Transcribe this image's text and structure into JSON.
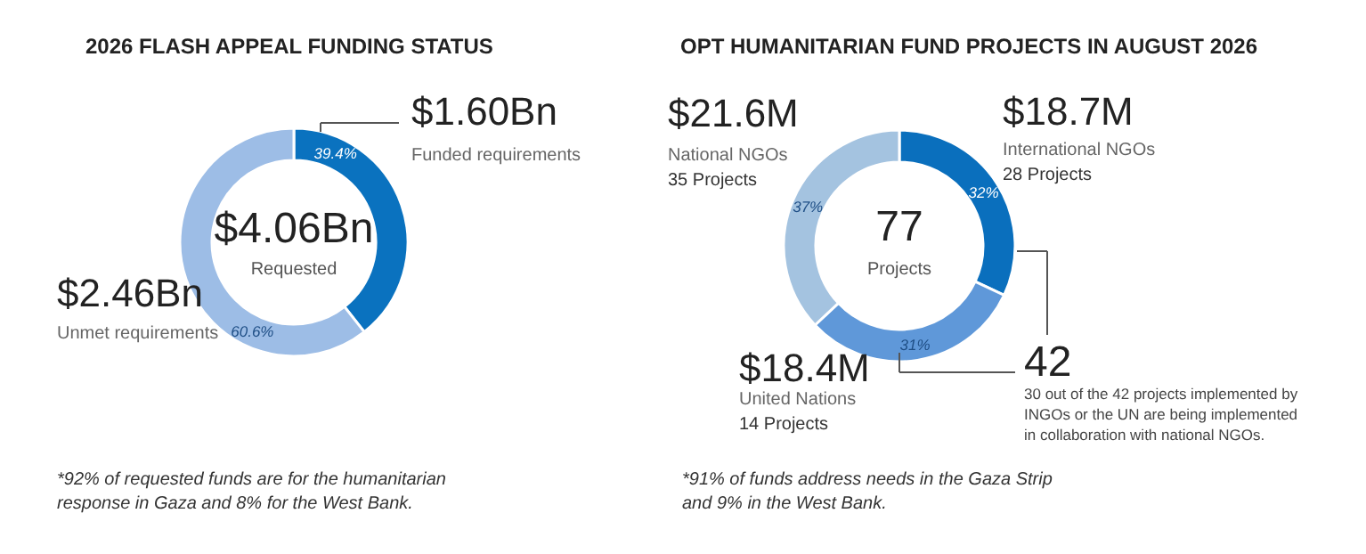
{
  "chart_data": [
    {
      "type": "donut",
      "title": "2026 FLASH APPEAL FUNDING STATUS",
      "categories": [
        "Funded requirements",
        "Unmet requirements"
      ],
      "values": [
        39.4,
        60.6
      ],
      "value_labels": [
        "39.4%",
        "60.6%"
      ],
      "colors": [
        "#0a72bf",
        "#9dbde6"
      ],
      "annotations": [
        "$1.60Bn",
        "$2.46Bn",
        "$4.06Bn",
        "Requested",
        "*92% of requested funds are for the humanitarian\nresponse in Gaza and 8% for the West Bank."
      ]
    },
    {
      "type": "donut",
      "title": "OPT HUMANITARIAN FUND PROJECTS IN AUGUST 2026",
      "categories": [
        "International NGOs",
        "United Nations",
        "National NGOs"
      ],
      "values": [
        32,
        31,
        37
      ],
      "value_labels": [
        "32%",
        "31%",
        "37%"
      ],
      "colors": [
        "#0a6fbd",
        "#5f98d9",
        "#a4c3e0"
      ],
      "annotations": [
        "$18.7M",
        "28 Projects",
        "$18.4M",
        "14 Projects",
        "$21.6M",
        "35 Projects",
        "77",
        "Projects",
        "42",
        "30 out of the 42 projects implemented by\nINGOs or the UN are being implemented\nin collaboration with national NGOs.",
        "*91% of funds address needs in the Gaza Strip\nand 9% in the West Bank."
      ]
    }
  ]
}
